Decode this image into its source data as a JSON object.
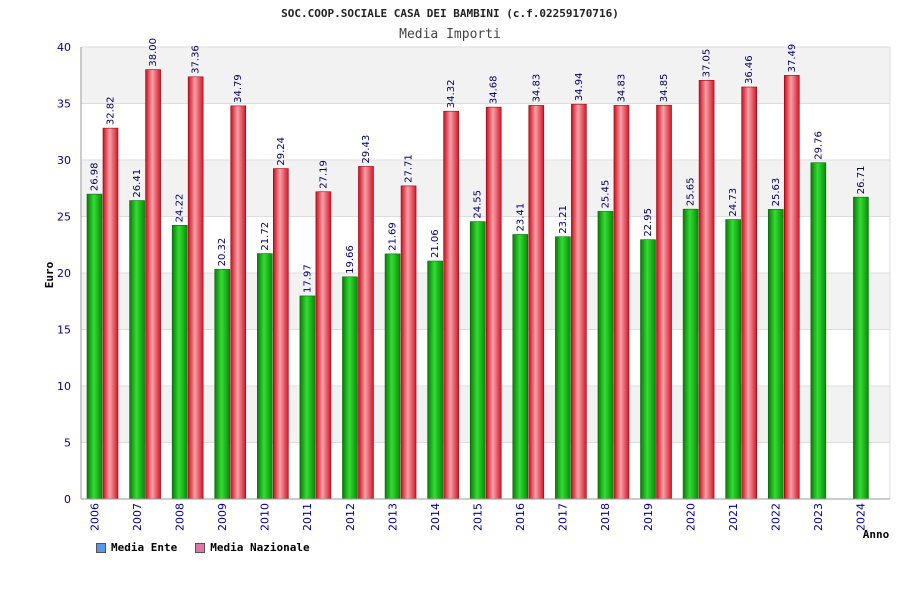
{
  "chart_data": {
    "type": "bar",
    "title": "SOC.COOP.SOCIALE CASA DEI BAMBINI (c.f.02259170716)",
    "subtitle": "Media Importi",
    "ylabel": "Euro",
    "xlabel": "Anno",
    "ylim": [
      0,
      40
    ],
    "yticks": [
      "0",
      "5",
      "10",
      "15",
      "20",
      "25",
      "30",
      "35",
      "40"
    ],
    "grid": true,
    "legend_position": "bottom-left",
    "categories": [
      "2006",
      "2007",
      "2008",
      "2009",
      "2010",
      "2011",
      "2012",
      "2013",
      "2014",
      "2015",
      "2016",
      "2017",
      "2018",
      "2019",
      "2020",
      "2021",
      "2022",
      "2023",
      "2024"
    ],
    "series": [
      {
        "name": "Media Ente",
        "color": "#22bb22",
        "legend_color": "#5599ee",
        "values": [
          26.98,
          26.41,
          24.22,
          20.32,
          21.72,
          17.97,
          19.66,
          21.69,
          21.06,
          24.55,
          23.41,
          23.21,
          25.45,
          22.95,
          25.65,
          24.73,
          25.63,
          29.76,
          26.71
        ],
        "labels": [
          "26.98",
          "26.41",
          "24.22",
          "20.32",
          "21.72",
          "17.97",
          "19.66",
          "21.69",
          "21.06",
          "24.55",
          "23.41",
          "23.21",
          "25.45",
          "22.95",
          "25.65",
          "24.73",
          "25.63",
          "29.76",
          "26.71"
        ]
      },
      {
        "name": "Media Nazionale",
        "color": "#ee3344",
        "legend_color": "#dd77aa",
        "values": [
          32.82,
          38.0,
          37.36,
          34.79,
          29.24,
          27.19,
          29.43,
          27.71,
          34.32,
          34.68,
          34.83,
          34.94,
          34.83,
          34.85,
          37.05,
          36.46,
          37.49,
          null,
          null
        ],
        "labels": [
          "32.82",
          "38.00",
          "37.36",
          "34.79",
          "29.24",
          "27.19",
          "29.43",
          "27.71",
          "34.32",
          "34.68",
          "34.83",
          "34.94",
          "34.83",
          "34.85",
          "37.05",
          "36.46",
          "37.49",
          null,
          null
        ]
      }
    ]
  }
}
